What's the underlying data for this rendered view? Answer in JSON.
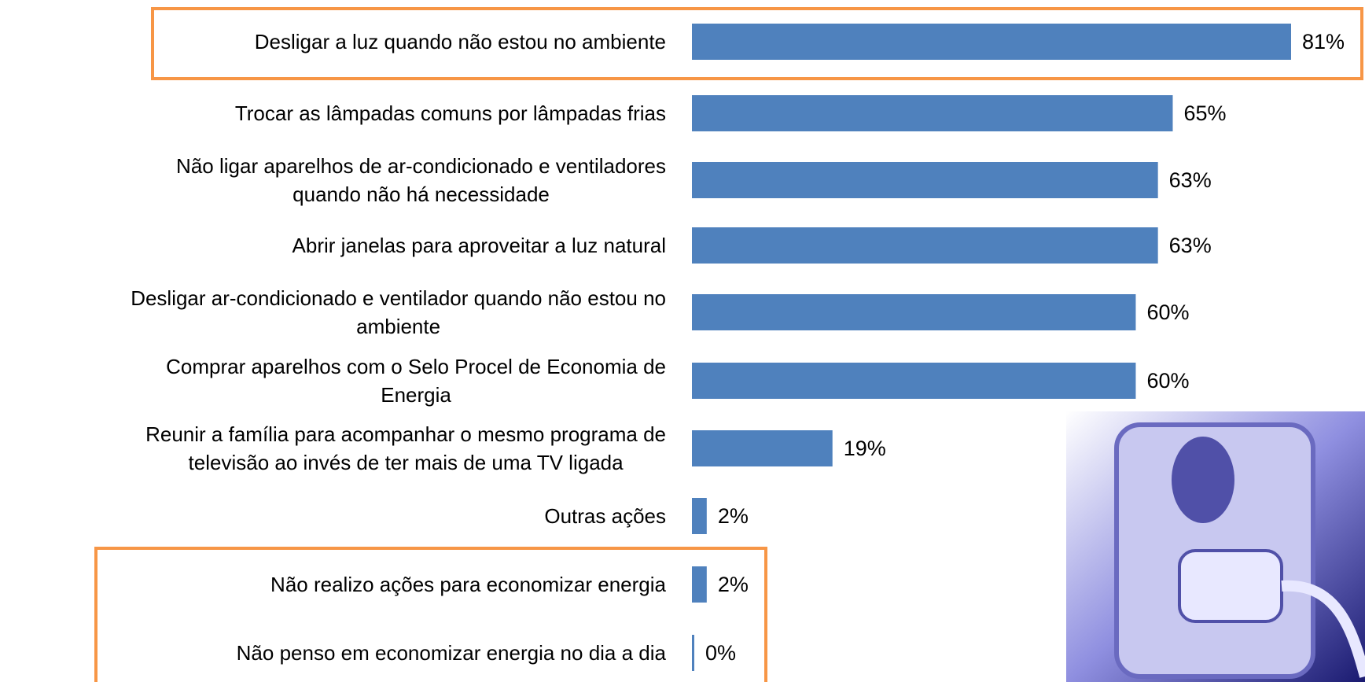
{
  "chart_data": {
    "type": "bar",
    "orientation": "horizontal",
    "categories": [
      "Desligar a luz quando não estou no ambiente",
      "Trocar as lâmpadas comuns por lâmpadas frias",
      "Não ligar aparelhos de ar-condicionado e ventiladores\nquando não há necessidade",
      "Abrir janelas para aproveitar a luz natural",
      "Desligar ar-condicionado e ventilador quando não estou no\nambiente",
      "Comprar aparelhos com o Selo Procel de Economia de\nEnergia",
      "Reunir a família para acompanhar o mesmo programa de\ntelevisão ao invés de ter mais de uma TV ligada",
      "Outras ações",
      "Não realizo ações para economizar energia",
      "Não penso em economizar energia no dia a dia"
    ],
    "values": [
      81,
      65,
      63,
      63,
      60,
      60,
      19,
      2,
      2,
      0
    ],
    "value_labels": [
      "81%",
      "65%",
      "63%",
      "63%",
      "60%",
      "60%",
      "19%",
      "2%",
      "2%",
      "0%"
    ],
    "color": "#4f81bd"
  }
}
